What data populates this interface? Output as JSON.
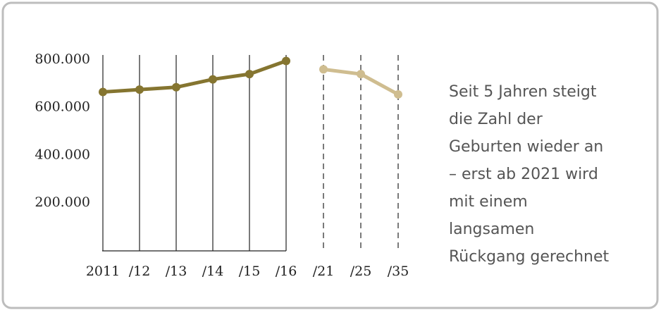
{
  "chart_data": {
    "type": "line",
    "categories": [
      "2011",
      "/12",
      "/13",
      "/14",
      "/15",
      "/16",
      "/21",
      "/25",
      "/35"
    ],
    "series": [
      {
        "color": "#857530",
        "values": [
          665000,
          675000,
          685000,
          718000,
          740000,
          795000,
          null,
          null,
          null
        ]
      },
      {
        "color": "#cfbd90",
        "values": [
          null,
          null,
          null,
          null,
          null,
          null,
          760000,
          740000,
          655000
        ]
      }
    ],
    "ylim": [
      0,
      820000
    ],
    "yticks": [
      {
        "value": 200000,
        "label": "200.000"
      },
      {
        "value": 400000,
        "label": "400.000"
      },
      {
        "value": 600000,
        "label": "600.000"
      },
      {
        "value": 800000,
        "label": "800.000"
      }
    ],
    "annotation": [
      "Seit 5 Jahren steigt",
      "die Zahl der",
      "Geburten wieder an",
      "– erst ab 2021 wird",
      "mit einem",
      "langsamen",
      "Rückgang gerechnet"
    ]
  }
}
